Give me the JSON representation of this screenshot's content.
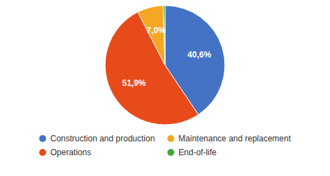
{
  "chart_data": {
    "type": "pie",
    "categories": [
      "Construction and production",
      "Operations",
      "Maintenance and replacement",
      "End-of-life"
    ],
    "values": [
      40.6,
      51.9,
      7.0,
      0.5
    ],
    "value_labels": [
      "40,6%",
      "51,9%",
      "7,0%",
      null
    ],
    "colors": [
      "#4472C4",
      "#E84B1A",
      "#F5A623",
      "#3DAA3D"
    ],
    "data_labels": true,
    "legend": "bottom"
  }
}
